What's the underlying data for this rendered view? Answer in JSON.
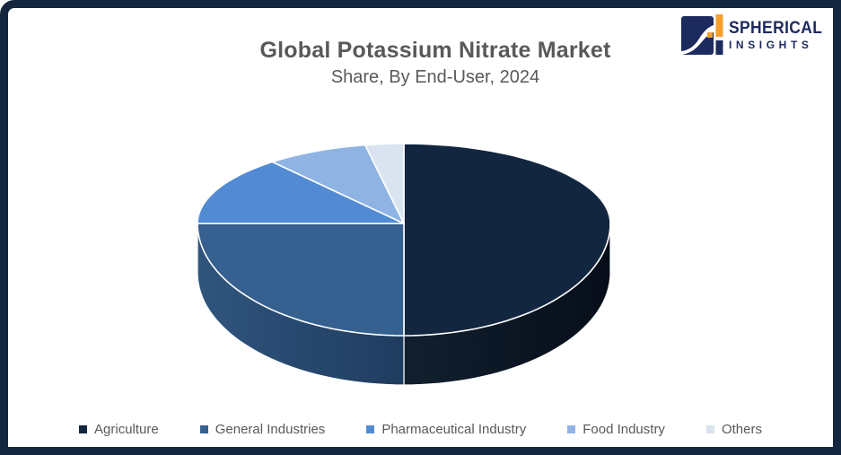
{
  "header": {
    "title": "Global Potassium Nitrate Market",
    "subtitle": "Share, By End-User, 2024"
  },
  "logo": {
    "line1": "SPHERICAL",
    "line2": "INSIGHTS",
    "navy": "#1C2A5E",
    "orange": "#F2A02E"
  },
  "theme": {
    "frame_color": "#14273F",
    "title_color": "#595959",
    "legend_text_color": "#595959",
    "background": "#FFFFFF",
    "slice_border": "#FFFFFF"
  },
  "chart_data": {
    "type": "pie",
    "style": "3d",
    "title": "Global Potassium Nitrate Market",
    "subtitle": "Share, By End-User, 2024",
    "labels": [
      "Agriculture",
      "General Industries",
      "Pharmaceutical Industry",
      "Food Industry",
      "Others"
    ],
    "values": [
      50,
      25,
      14,
      8,
      3
    ],
    "unit": "percent-share-estimated",
    "colors": [
      "#122640",
      "#35608F",
      "#528AD3",
      "#8FB3E3",
      "#DAE3F0"
    ],
    "side_colors_start": [
      "#11202F",
      "#30557E"
    ],
    "side_colors_end": [
      "#070E1A",
      "#1F3C5F"
    ],
    "start_angle": "12 o'clock",
    "direction": "clockwise",
    "legend_position": "bottom",
    "data_labels": "none"
  }
}
